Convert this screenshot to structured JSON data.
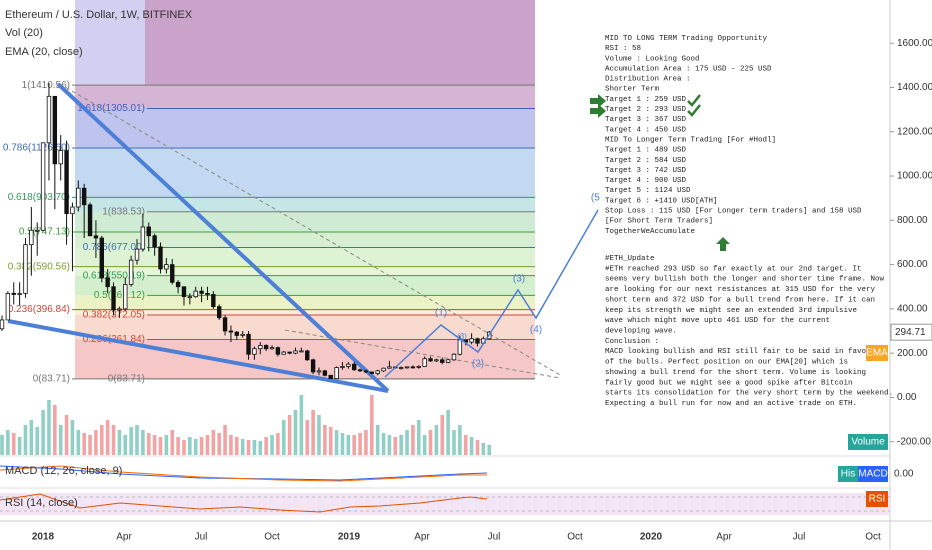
{
  "header": {
    "title": "Ethereum / U.S. Dollar, 1W, BITFINEX",
    "volume_label": "Vol (20)",
    "ema_label": "EMA (20, close)"
  },
  "chart_data": {
    "type": "candlestick",
    "ohlc": [
      [
        310,
        370,
        300,
        350
      ],
      [
        350,
        480,
        350,
        470
      ],
      [
        470,
        520,
        420,
        465
      ],
      [
        465,
        520,
        415,
        470
      ],
      [
        470,
        720,
        450,
        690
      ],
      [
        690,
        860,
        550,
        755
      ],
      [
        755,
        790,
        640,
        755
      ],
      [
        755,
        1150,
        750,
        1150
      ],
      [
        1150,
        1420,
        980,
        1360
      ],
      [
        1360,
        1360,
        850,
        1055
      ],
      [
        1055,
        1185,
        980,
        1115
      ],
      [
        1115,
        1160,
        690,
        830
      ],
      [
        830,
        880,
        570,
        860
      ],
      [
        860,
        980,
        840,
        945
      ],
      [
        945,
        965,
        720,
        870
      ],
      [
        870,
        880,
        740,
        730
      ],
      [
        730,
        800,
        630,
        720
      ],
      [
        720,
        730,
        520,
        540
      ],
      [
        540,
        580,
        470,
        500
      ],
      [
        500,
        520,
        370,
        395
      ],
      [
        395,
        410,
        360,
        400
      ],
      [
        400,
        540,
        390,
        510
      ],
      [
        510,
        640,
        500,
        620
      ],
      [
        620,
        715,
        600,
        670
      ],
      [
        670,
        830,
        660,
        770
      ],
      [
        770,
        790,
        660,
        730
      ],
      [
        730,
        740,
        640,
        680
      ],
      [
        680,
        700,
        560,
        580
      ],
      [
        580,
        630,
        560,
        600
      ],
      [
        600,
        625,
        510,
        520
      ],
      [
        520,
        530,
        470,
        500
      ],
      [
        500,
        500,
        415,
        455
      ],
      [
        455,
        470,
        420,
        455
      ],
      [
        455,
        500,
        450,
        480
      ],
      [
        480,
        500,
        430,
        470
      ],
      [
        470,
        500,
        440,
        465
      ],
      [
        465,
        480,
        400,
        410
      ],
      [
        410,
        420,
        350,
        360
      ],
      [
        360,
        370,
        280,
        300
      ],
      [
        300,
        325,
        250,
        295
      ],
      [
        295,
        300,
        260,
        280
      ],
      [
        280,
        300,
        270,
        285
      ],
      [
        285,
        300,
        170,
        195
      ],
      [
        195,
        230,
        170,
        220
      ],
      [
        220,
        250,
        195,
        235
      ],
      [
        235,
        240,
        210,
        220
      ],
      [
        220,
        235,
        215,
        225
      ],
      [
        225,
        230,
        185,
        195
      ],
      [
        195,
        210,
        195,
        205
      ],
      [
        205,
        205,
        195,
        200
      ],
      [
        200,
        225,
        195,
        210
      ],
      [
        210,
        225,
        205,
        210
      ],
      [
        210,
        215,
        165,
        170
      ],
      [
        170,
        175,
        105,
        115
      ],
      [
        115,
        135,
        100,
        120
      ],
      [
        120,
        125,
        95,
        100
      ],
      [
        100,
        100,
        84,
        85
      ],
      [
        85,
        140,
        85,
        135
      ],
      [
        135,
        160,
        125,
        140
      ],
      [
        140,
        160,
        130,
        150
      ],
      [
        150,
        160,
        120,
        125
      ],
      [
        125,
        130,
        115,
        120
      ],
      [
        120,
        125,
        110,
        115
      ],
      [
        115,
        115,
        105,
        108
      ],
      [
        108,
        125,
        100,
        120
      ],
      [
        120,
        135,
        115,
        132
      ],
      [
        132,
        165,
        130,
        138
      ],
      [
        138,
        140,
        130,
        135
      ],
      [
        135,
        140,
        125,
        135
      ],
      [
        135,
        140,
        130,
        138
      ],
      [
        138,
        145,
        130,
        137
      ],
      [
        137,
        145,
        130,
        140
      ],
      [
        140,
        185,
        140,
        175
      ],
      [
        175,
        185,
        160,
        165
      ],
      [
        165,
        175,
        160,
        170
      ],
      [
        170,
        180,
        150,
        158
      ],
      [
        158,
        175,
        155,
        170
      ],
      [
        170,
        200,
        165,
        195
      ],
      [
        195,
        280,
        190,
        260
      ],
      [
        260,
        260,
        235,
        250
      ],
      [
        250,
        290,
        240,
        265
      ],
      [
        265,
        270,
        230,
        245
      ],
      [
        245,
        275,
        240,
        265
      ],
      [
        265,
        300,
        260,
        295
      ]
    ],
    "volume": [
      20,
      25,
      22,
      18,
      30,
      35,
      28,
      45,
      55,
      50,
      30,
      40,
      35,
      25,
      22,
      20,
      25,
      30,
      35,
      30,
      25,
      20,
      28,
      30,
      25,
      22,
      20,
      18,
      20,
      25,
      18,
      15,
      18,
      16,
      18,
      20,
      25,
      22,
      30,
      20,
      18,
      16,
      15,
      15,
      14,
      18,
      20,
      22,
      35,
      40,
      45,
      60,
      35,
      45,
      40,
      30,
      28,
      25,
      22,
      20,
      20,
      22,
      25,
      60,
      30,
      22,
      20,
      18,
      20,
      25,
      30,
      35,
      20,
      25,
      30,
      40,
      45,
      25,
      30,
      20,
      18,
      15,
      12,
      10
    ],
    "up_color": "#ffffff",
    "down_color": "#111111",
    "volume_up_color": "#8fcfc5",
    "volume_down_color": "#f2a4a4",
    "ylim": [
      -260,
      1795
    ],
    "yticks": [
      {
        "value": 1600,
        "label": "1600.00"
      },
      {
        "value": 1400,
        "label": "1400.00"
      },
      {
        "value": 1200,
        "label": "1200.00"
      },
      {
        "value": 1000,
        "label": "1000.00"
      },
      {
        "value": 800,
        "label": "800.00"
      },
      {
        "value": 600,
        "label": "600.00"
      },
      {
        "value": 400,
        "label": "400.00"
      },
      {
        "value": 200,
        "label": "200.00"
      },
      {
        "value": 0,
        "label": "0.00"
      },
      {
        "value": -200,
        "label": "-200.00"
      }
    ],
    "xtick_labels": [
      "2018",
      "Apr",
      "Jul",
      "Oct",
      "2019",
      "Apr",
      "Jul",
      "Oct",
      "2020",
      "Apr",
      "Jul",
      "Oct"
    ],
    "last_price": 294.71,
    "fib_left": [
      {
        "label": "1(1410.56)",
        "value": 1410.56,
        "color": "#777777"
      },
      {
        "label": "0.786(1126.60)",
        "value": 1126.6,
        "color": "#3d6fb3"
      },
      {
        "label": "0.618(903.70)",
        "value": 903.7,
        "color": "#2e9b5a"
      },
      {
        "label": "0.5(747.13)",
        "value": 747.13,
        "color": "#3e9b3e"
      },
      {
        "label": "0.382(590.56)",
        "value": 590.56,
        "color": "#7aa02a"
      },
      {
        "label": "0.236(396.84)",
        "value": 396.84,
        "color": "#d0443a"
      },
      {
        "label": "0(83.71)",
        "value": 83.71,
        "color": "#777777"
      }
    ],
    "fib_right": [
      {
        "label": "1.618(1305.01)",
        "value": 1305.01,
        "color": "#3d5fc4"
      },
      {
        "label": "1(838.53)",
        "value": 838.53,
        "color": "#777777"
      },
      {
        "label": "0.786(677.00)",
        "value": 677.0,
        "color": "#3d6fb3"
      },
      {
        "label": "0.618(550.19)",
        "value": 550.19,
        "color": "#2e9b5a"
      },
      {
        "label": "0.5(461.12)",
        "value": 461.12,
        "color": "#3e9b3e"
      },
      {
        "label": "0.382(372.05)",
        "value": 372.05,
        "color": "#d0443a"
      },
      {
        "label": "0.236(261.84)",
        "value": 261.84,
        "color": "#d0443a"
      },
      {
        "label": "0(83.71)",
        "value": 83.71,
        "color": "#777777"
      }
    ],
    "wave_labels": [
      "(1)",
      "(2)",
      "(3)",
      "(4)",
      "(5)"
    ],
    "minor_wave_label": "(3)",
    "tags": {
      "volume": "Volume",
      "ema": "EMA",
      "histogram": "His",
      "macd": "MACD",
      "rsi": "RSI"
    },
    "macd_label": "MACD (12, 26, close, 9)",
    "rsi_label": "RSI (14, close)",
    "macd_zero_label": "0.00"
  },
  "annotation": {
    "plan": [
      "MID TO LONG TERM Trading Opportunity",
      "RSI : 58",
      "Volume : Looking Good",
      "Accumulation Area : 175 USD - 225 USD",
      "Distribution Area :",
      "Shorter Term",
      "Target 1 : 259 USD",
      "Target 2 : 293 USD",
      "Target 3 : 367 USD",
      "Target 4 : 450 USD",
      "MID To Longer Term Trading [For #Hodl]",
      "Target 1 : 489 USD",
      "Target 2 : 584 USD",
      "Target 3 : 742 USD",
      "Target 4 : 900 USD",
      "Target 5 : 1124 USD",
      "Target 6 : +1410 USD[ATH]",
      "Stop Loss : 115 USD [For Longer term traders] and 158 USD",
      "[For Short Term Traders]",
      "TogetherWeAccumulate"
    ],
    "update": [
      "#ETH_Update",
      "#ETH reached 293 USD so far exactly at our 2nd target. It",
      "seems very bullish both the longer and shorter time frame. Now",
      "are looking for our next resistances at 315 USD for the very",
      "short term and 372 USD for a bull trend from here. If it can",
      "keep its strength we might see an extended 3rd impulsive",
      "wave which might move upto 461 USD for the current",
      "developing wave.",
      "Conclusion :",
      "MACD looking bullish and RSI still fair to be said in favor",
      "of the bulls. Perfect position on our EMA[20] which is",
      "showing a bull trend for the short term. Volume is looking",
      "fairly good but we might see a good spike after Bitcoin",
      "starts its consolidation for the very short term by the weekend.",
      "Expecting a bull run for now and an active trade on ETH."
    ]
  }
}
